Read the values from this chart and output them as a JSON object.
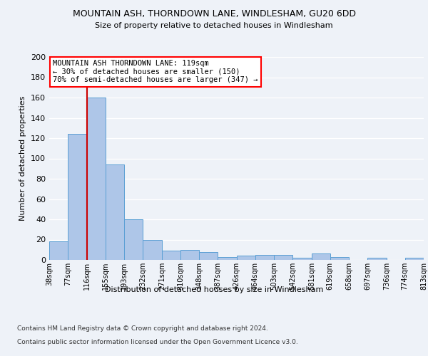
{
  "title": "MOUNTAIN ASH, THORNDOWN LANE, WINDLESHAM, GU20 6DD",
  "subtitle": "Size of property relative to detached houses in Windlesham",
  "xlabel": "Distribution of detached houses by size in Windlesham",
  "ylabel": "Number of detached properties",
  "bar_color": "#aec6e8",
  "bar_edge_color": "#5a9fd4",
  "vline_color": "#cc0000",
  "vline_x": 116,
  "annotation_lines": [
    "MOUNTAIN ASH THORNDOWN LANE: 119sqm",
    "← 30% of detached houses are smaller (150)",
    "70% of semi-detached houses are larger (347) →"
  ],
  "bin_edges": [
    38,
    77,
    116,
    155,
    193,
    232,
    271,
    310,
    348,
    387,
    426,
    464,
    503,
    542,
    581,
    619,
    658,
    697,
    736,
    774,
    813
  ],
  "bin_values": [
    18,
    124,
    160,
    94,
    40,
    20,
    9,
    10,
    8,
    3,
    4,
    5,
    5,
    2,
    6,
    3,
    0,
    2,
    0,
    2
  ],
  "ylim": [
    0,
    200
  ],
  "yticks": [
    0,
    20,
    40,
    60,
    80,
    100,
    120,
    140,
    160,
    180,
    200
  ],
  "footer1": "Contains HM Land Registry data © Crown copyright and database right 2024.",
  "footer2": "Contains public sector information licensed under the Open Government Licence v3.0.",
  "bg_color": "#eef2f8",
  "plot_bg_color": "#eef2f8"
}
